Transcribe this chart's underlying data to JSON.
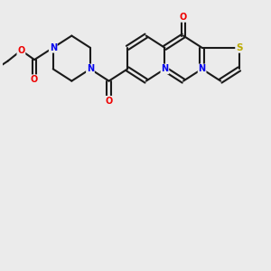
{
  "background_color": "#ebebeb",
  "bond_color": "#1a1a1a",
  "atom_colors": {
    "N": "#0000ee",
    "O": "#ee0000",
    "S": "#bbaa00",
    "C": "#1a1a1a"
  },
  "figsize": [
    3.0,
    3.0
  ],
  "dpi": 100
}
